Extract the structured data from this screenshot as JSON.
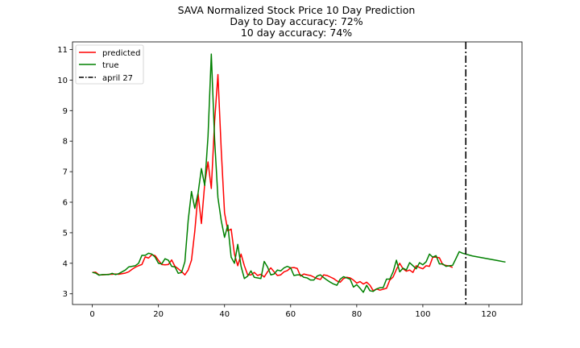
{
  "chart_data": {
    "type": "line",
    "title_lines": [
      "SAVA Normalized Stock Price 10 Day Prediction",
      "Day to Day accuracy: 72%",
      "10 day accuracy: 74%"
    ],
    "xlabel": "",
    "ylabel": "",
    "xlim": [
      -6,
      130
    ],
    "ylim": [
      2.65,
      11.25
    ],
    "x_ticks": [
      0,
      20,
      40,
      60,
      80,
      100,
      120
    ],
    "y_ticks": [
      3,
      4,
      5,
      6,
      7,
      8,
      9,
      10,
      11
    ],
    "grid": false,
    "legend_location": "upper left",
    "series": [
      {
        "name": "predicted",
        "color": "#ff0000",
        "x_start": 0,
        "values": [
          3.7,
          3.71,
          3.62,
          3.62,
          3.63,
          3.64,
          3.64,
          3.65,
          3.64,
          3.66,
          3.68,
          3.72,
          3.8,
          3.87,
          3.92,
          3.96,
          4.21,
          4.17,
          4.28,
          4.25,
          4.1,
          3.96,
          3.95,
          3.96,
          4.11,
          3.9,
          3.82,
          3.73,
          3.62,
          3.78,
          4.1,
          5.05,
          6.28,
          5.3,
          6.6,
          7.32,
          6.45,
          8.65,
          10.18,
          7.72,
          5.65,
          5.06,
          5.12,
          4.3,
          3.92,
          4.3,
          3.92,
          3.62,
          3.62,
          3.7,
          3.6,
          3.64,
          3.55,
          3.72,
          3.85,
          3.72,
          3.6,
          3.62,
          3.72,
          3.76,
          3.85,
          3.86,
          3.83,
          3.58,
          3.65,
          3.62,
          3.6,
          3.55,
          3.5,
          3.47,
          3.62,
          3.6,
          3.55,
          3.5,
          3.42,
          3.38,
          3.5,
          3.54,
          3.52,
          3.45,
          3.35,
          3.4,
          3.32,
          3.38,
          3.28,
          3.1,
          3.16,
          3.12,
          3.15,
          3.18,
          3.45,
          3.55,
          3.8,
          4.0,
          3.82,
          3.74,
          3.78,
          3.7,
          3.92,
          3.86,
          3.82,
          3.92,
          3.9,
          4.2,
          4.2,
          4.18,
          3.96,
          3.93,
          3.91,
          3.86
        ]
      },
      {
        "name": "true",
        "color": "#008000",
        "x_start": 0,
        "values": [
          3.7,
          3.68,
          3.61,
          3.63,
          3.63,
          3.63,
          3.67,
          3.63,
          3.66,
          3.72,
          3.78,
          3.88,
          3.9,
          3.92,
          4.0,
          4.26,
          4.26,
          4.33,
          4.3,
          4.2,
          4.0,
          3.98,
          4.15,
          4.1,
          3.9,
          3.88,
          3.67,
          3.7,
          4.05,
          5.4,
          6.35,
          5.8,
          6.3,
          7.1,
          6.55,
          8.15,
          10.85,
          8.05,
          6.15,
          5.4,
          4.85,
          5.25,
          4.2,
          4.0,
          4.62,
          3.9,
          3.5,
          3.58,
          3.75,
          3.54,
          3.52,
          3.5,
          4.06,
          3.88,
          3.62,
          3.65,
          3.78,
          3.75,
          3.85,
          3.9,
          3.85,
          3.6,
          3.62,
          3.62,
          3.54,
          3.52,
          3.45,
          3.45,
          3.58,
          3.62,
          3.53,
          3.45,
          3.38,
          3.32,
          3.28,
          3.48,
          3.56,
          3.52,
          3.48,
          3.22,
          3.3,
          3.18,
          3.05,
          3.28,
          3.1,
          3.08,
          3.16,
          3.2,
          3.2,
          3.48,
          3.48,
          3.72,
          4.1,
          3.72,
          3.84,
          3.78,
          4.02,
          3.92,
          3.82,
          4.02,
          3.95,
          4.05,
          4.3,
          4.2,
          4.25,
          3.98,
          3.98,
          3.9,
          3.92,
          3.93,
          4.15,
          4.38,
          4.33,
          4.3,
          4.27,
          4.24,
          4.22,
          4.2,
          4.18,
          4.16,
          4.14,
          4.12,
          4.1,
          4.08,
          4.06,
          4.04
        ]
      }
    ],
    "vline": {
      "name": "april 27",
      "x": 113,
      "color": "#000000",
      "style": "dashdot"
    }
  }
}
